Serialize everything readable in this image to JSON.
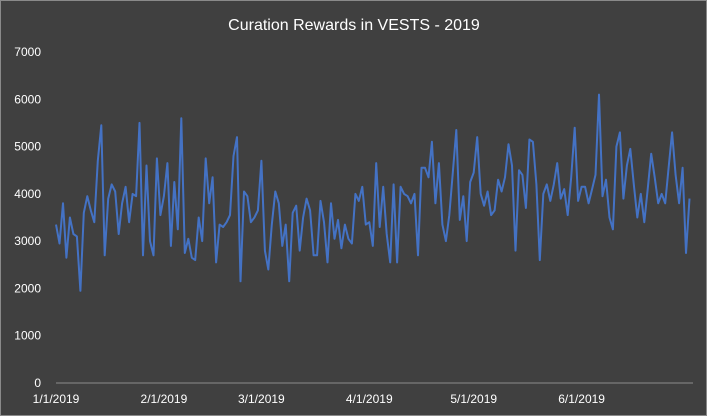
{
  "chart_data": {
    "type": "line",
    "title": "Curation Rewards in VESTS - 2019",
    "xlabel": "",
    "ylabel": "",
    "x_start": "2019-01-01",
    "x_end": "2019-07-03",
    "x_ticks": [
      {
        "date": "2019-01-01",
        "label": "1/1/2019"
      },
      {
        "date": "2019-02-01",
        "label": "2/1/2019"
      },
      {
        "date": "2019-03-01",
        "label": "3/1/2019"
      },
      {
        "date": "2019-04-01",
        "label": "4/1/2019"
      },
      {
        "date": "2019-05-01",
        "label": "5/1/2019"
      },
      {
        "date": "2019-06-01",
        "label": "6/1/2019"
      }
    ],
    "ylim": [
      0,
      7000
    ],
    "y_ticks": [
      0,
      1000,
      2000,
      3000,
      4000,
      5000,
      6000,
      7000
    ],
    "grid": false,
    "legend": "none",
    "series": [
      {
        "color": "#4472C4",
        "values": [
          3350,
          2950,
          3800,
          2650,
          3500,
          3150,
          3100,
          1950,
          3600,
          3950,
          3650,
          3400,
          4700,
          5450,
          2700,
          3900,
          4200,
          4050,
          3150,
          3800,
          4150,
          3400,
          4000,
          3950,
          5500,
          2700,
          4600,
          3000,
          2700,
          4750,
          3550,
          3950,
          4650,
          2900,
          4250,
          3250,
          5600,
          2750,
          3050,
          2650,
          2600,
          3500,
          3000,
          4750,
          3800,
          4350,
          2550,
          3350,
          3300,
          3400,
          3550,
          4800,
          5200,
          2150,
          4050,
          3950,
          3400,
          3500,
          3650,
          4700,
          2800,
          2400,
          3350,
          4050,
          3800,
          2900,
          3350,
          2150,
          3600,
          3750,
          2800,
          3500,
          3900,
          3650,
          2700,
          2700,
          3850,
          3400,
          2550,
          3800,
          3050,
          3450,
          2850,
          3350,
          3050,
          2950,
          4000,
          3850,
          4150,
          3350,
          3400,
          2900,
          4650,
          3300,
          4150,
          3150,
          2550,
          4200,
          2550,
          4150,
          4000,
          3950,
          3800,
          4000,
          2700,
          4550,
          4550,
          4350,
          5100,
          3800,
          4650,
          3350,
          3000,
          3550,
          4450,
          5350,
          3450,
          3950,
          3000,
          4250,
          4450,
          5200,
          4000,
          3750,
          4050,
          3550,
          3650,
          4300,
          4050,
          4350,
          5050,
          4600,
          2800,
          4500,
          4400,
          3700,
          5150,
          5100,
          4200,
          2600,
          4000,
          4200,
          3850,
          4200,
          4650,
          3900,
          4100,
          3550,
          4350,
          5400,
          3850,
          4150,
          4150,
          3800,
          4100,
          4400,
          6100,
          3950,
          4300,
          3500,
          3250,
          5000,
          5300,
          3900,
          4600,
          4950,
          4200,
          3500,
          4000,
          3400,
          4100,
          4850,
          4350,
          3800,
          4000,
          3800,
          4550,
          5300,
          4400,
          3800,
          4550,
          2750,
          3900
        ]
      }
    ]
  }
}
